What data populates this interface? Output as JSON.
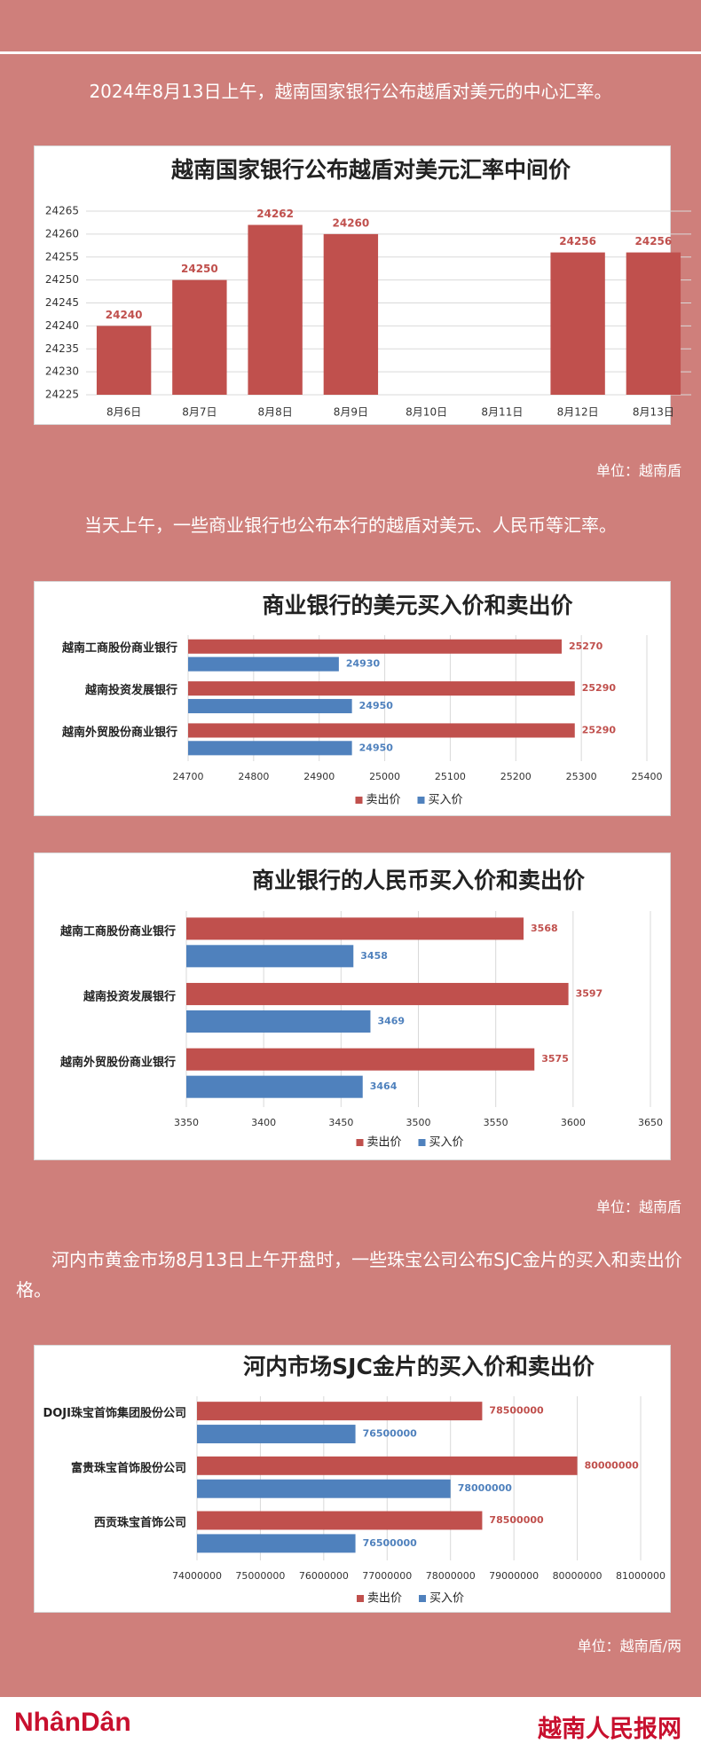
{
  "intro": "2024年8月13日上午，越南国家银行公布越盾对美元的中心汇率。",
  "paragraph_2": "当天上午，一些商业银行也公布本行的越盾对美元、人民币等汇率。",
  "paragraph_3": "河内市黄金市场8月13日上午开盘时，一些珠宝公司公布SJC金片的买入和卖出价格。",
  "units": [
    "单位：越南盾",
    "单位：越南盾",
    "单位：越南盾/两"
  ],
  "footer": {
    "logo_left": "NhânDân",
    "logo_right": "越南人民报网"
  },
  "chart_data": [
    {
      "type": "bar",
      "title": "越南国家银行公布越盾对美元汇率中间价",
      "categories": [
        "8月6日",
        "8月7日",
        "8月8日",
        "8月9日",
        "8月10日",
        "8月11日",
        "8月12日",
        "8月13日"
      ],
      "values": [
        24240,
        24250,
        24262,
        24260,
        null,
        null,
        24256,
        24256
      ],
      "color": "#c0504d",
      "ylim": [
        24225,
        24265
      ],
      "yticks": [
        24225,
        24230,
        24235,
        24240,
        24245,
        24250,
        24255,
        24260,
        24265
      ],
      "grid": true
    },
    {
      "type": "barh",
      "title": "商业银行的美元买入价和卖出价",
      "categories": [
        "越南工商股份商业银行",
        "越南投资发展银行",
        "越南外贸股份商业银行"
      ],
      "series": [
        {
          "name": "卖出价",
          "color": "#c0504d",
          "values": [
            25270,
            25290,
            25290
          ]
        },
        {
          "name": "买入价",
          "color": "#4f81bd",
          "values": [
            24930,
            24950,
            24950
          ]
        }
      ],
      "xlim": [
        24700,
        25400
      ],
      "xticks": [
        24700,
        24800,
        24900,
        25000,
        25100,
        25200,
        25300,
        25400
      ],
      "grid": true,
      "legend": "bottom"
    },
    {
      "type": "barh",
      "title": "商业银行的人民币买入价和卖出价",
      "categories": [
        "越南工商股份商业银行",
        "越南投资发展银行",
        "越南外贸股份商业银行"
      ],
      "series": [
        {
          "name": "卖出价",
          "color": "#c0504d",
          "values": [
            3568,
            3597,
            3575
          ]
        },
        {
          "name": "买入价",
          "color": "#4f81bd",
          "values": [
            3458,
            3469,
            3464
          ]
        }
      ],
      "xlim": [
        3350,
        3650
      ],
      "xticks": [
        3350,
        3400,
        3450,
        3500,
        3550,
        3600,
        3650
      ],
      "grid": true,
      "legend": "bottom"
    },
    {
      "type": "barh",
      "title": "河内市场SJC金片的买入价和卖出价",
      "categories": [
        "DOJI珠宝首饰集团股份公司",
        "富贵珠宝首饰股份公司",
        "西贡珠宝首饰公司"
      ],
      "series": [
        {
          "name": "卖出价",
          "color": "#c0504d",
          "values": [
            78500000,
            80000000,
            78500000
          ]
        },
        {
          "name": "买入价",
          "color": "#4f81bd",
          "values": [
            76500000,
            78000000,
            76500000
          ]
        }
      ],
      "xlim": [
        74000000,
        81000000
      ],
      "xticks": [
        74000000,
        75000000,
        76000000,
        77000000,
        78000000,
        79000000,
        80000000,
        81000000
      ],
      "grid": true,
      "legend": "bottom"
    }
  ]
}
